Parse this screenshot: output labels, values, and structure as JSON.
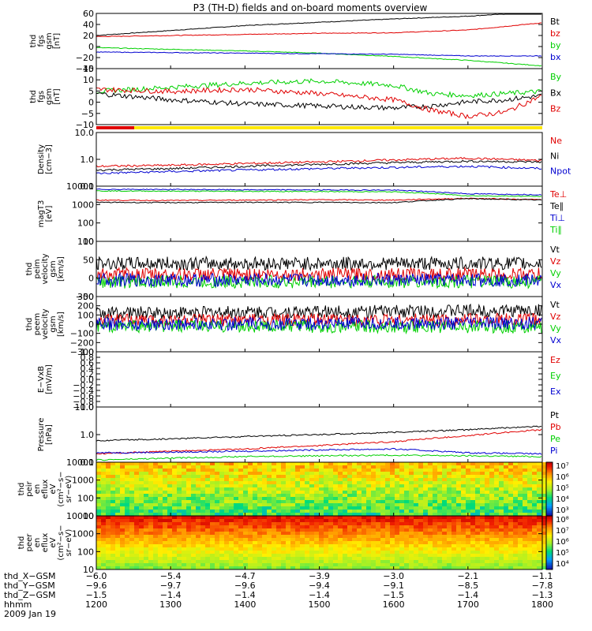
{
  "title": "P3 (TH-D) fields and on-board moments overview",
  "colors": {
    "black": "#000000",
    "red": "#e00000",
    "green": "#00d000",
    "blue": "#0000d0",
    "yellow": "#ffe800"
  },
  "chart_data": [
    {
      "type": "line",
      "id": "fgs_gsm",
      "ylabel": [
        "thd",
        "fgs",
        "gsm",
        "[nT]"
      ],
      "yscale": "linear",
      "ylim": [
        -40,
        60
      ],
      "yticks": [
        "60",
        "40",
        "20",
        "0",
        "−20",
        "−40"
      ],
      "series": [
        {
          "name": "Bt",
          "color": "black",
          "x": [
            1200,
            1300,
            1400,
            1500,
            1600,
            1700,
            1800
          ],
          "values": [
            20,
            29,
            38,
            44,
            50,
            55,
            63
          ]
        },
        {
          "name": "bz",
          "color": "red",
          "x": [
            1200,
            1300,
            1400,
            1500,
            1600,
            1700,
            1800
          ],
          "values": [
            18,
            20,
            22,
            24,
            25,
            30,
            43
          ]
        },
        {
          "name": "by",
          "color": "green",
          "x": [
            1200,
            1300,
            1400,
            1500,
            1600,
            1700,
            1800
          ],
          "values": [
            -2,
            -5,
            -8,
            -12,
            -18,
            -25,
            -35
          ]
        },
        {
          "name": "bx",
          "color": "blue",
          "x": [
            1200,
            1300,
            1400,
            1500,
            1600,
            1700,
            1800
          ],
          "values": [
            -10,
            -11,
            -12,
            -13,
            -14,
            -17,
            -17
          ]
        }
      ]
    },
    {
      "type": "line",
      "id": "fgs_gse_ns",
      "ylabel": [
        "thd",
        "fgs",
        "gsm",
        "[nT]"
      ],
      "yscale": "linear",
      "ylim": [
        -12,
        15
      ],
      "yticks": [
        "15",
        "10",
        "5",
        "0",
        "−5",
        "−10"
      ],
      "series": [
        {
          "name": "By",
          "color": "green",
          "x": [
            1200,
            1300,
            1400,
            1500,
            1600,
            1650,
            1700,
            1750,
            1800
          ],
          "values": [
            4,
            6,
            8,
            9,
            7,
            3,
            2,
            3,
            4
          ]
        },
        {
          "name": "Bx",
          "color": "black",
          "x": [
            1200,
            1300,
            1400,
            1500,
            1600,
            1650,
            1700,
            1750,
            1800
          ],
          "values": [
            3,
            0,
            -2,
            -3,
            -4,
            -3,
            -1,
            0,
            2
          ]
        },
        {
          "name": "Bz",
          "color": "red",
          "x": [
            1200,
            1300,
            1400,
            1500,
            1600,
            1650,
            1700,
            1750,
            1800
          ],
          "values": [
            5,
            4,
            5,
            3,
            0,
            -5,
            -8,
            -6,
            2
          ]
        }
      ]
    },
    {
      "type": "line",
      "id": "density",
      "ylabel": [
        "Density",
        "[cm−3]"
      ],
      "yscale": "log",
      "ylim": [
        0.1,
        10
      ],
      "yticks": [
        "10.0",
        "1.0",
        "0.1"
      ],
      "series": [
        {
          "name": "Ne",
          "color": "red",
          "x": [
            1200,
            1300,
            1400,
            1500,
            1600,
            1700,
            1800
          ],
          "values": [
            0.55,
            0.6,
            0.7,
            0.8,
            0.95,
            1.1,
            0.9
          ]
        },
        {
          "name": "Ni",
          "color": "black",
          "x": [
            1200,
            1300,
            1400,
            1500,
            1600,
            1700,
            1800
          ],
          "values": [
            0.4,
            0.45,
            0.55,
            0.65,
            0.75,
            0.85,
            0.8
          ]
        },
        {
          "name": "Npot",
          "color": "blue",
          "x": [
            1200,
            1300,
            1400,
            1500,
            1600,
            1700,
            1800
          ],
          "values": [
            0.3,
            0.35,
            0.4,
            0.45,
            0.5,
            0.55,
            0.45
          ]
        }
      ]
    },
    {
      "type": "line",
      "id": "temperature",
      "ylabel": [
        "magT3",
        "[eV]"
      ],
      "yscale": "log",
      "ylim": [
        10,
        12000
      ],
      "yticks": [
        "10000",
        "1000",
        "100",
        "10"
      ],
      "series": [
        {
          "name": "Te⊥",
          "color": "red",
          "x": [
            1200,
            1300,
            1400,
            1500,
            1600,
            1700,
            1800
          ],
          "values": [
            2000,
            1900,
            2000,
            2100,
            2000,
            2500,
            2100
          ]
        },
        {
          "name": "Te∥",
          "color": "black",
          "x": [
            1200,
            1300,
            1400,
            1500,
            1600,
            1700,
            1800
          ],
          "values": [
            1500,
            1450,
            1500,
            1500,
            1450,
            2400,
            2000
          ]
        },
        {
          "name": "Ti⊥",
          "color": "blue",
          "x": [
            1200,
            1300,
            1400,
            1500,
            1600,
            1700,
            1800
          ],
          "values": [
            8000,
            7800,
            7500,
            7400,
            7200,
            4500,
            4000
          ]
        },
        {
          "name": "Ti∥",
          "color": "green",
          "x": [
            1200,
            1300,
            1400,
            1500,
            1600,
            1700,
            1800
          ],
          "values": [
            6500,
            6300,
            6200,
            6000,
            5800,
            3500,
            3200
          ]
        }
      ]
    },
    {
      "type": "line",
      "id": "peim_velocity",
      "ylabel": [
        "thd",
        "peim",
        "velocity",
        "gsm",
        "[km/s]"
      ],
      "yscale": "linear",
      "ylim": [
        -50,
        100
      ],
      "yticks": [
        "100",
        "50",
        "0",
        "−50"
      ],
      "series": [
        {
          "name": "Vt",
          "color": "black",
          "x": [
            1200,
            1800
          ],
          "values": [
            40,
            40
          ]
        },
        {
          "name": "Vz",
          "color": "red",
          "x": [
            1200,
            1800
          ],
          "values": [
            10,
            10
          ]
        },
        {
          "name": "Vy",
          "color": "green",
          "x": [
            1200,
            1800
          ],
          "values": [
            -10,
            -10
          ]
        },
        {
          "name": "Vx",
          "color": "blue",
          "x": [
            1200,
            1800
          ],
          "values": [
            -5,
            -5
          ]
        }
      ]
    },
    {
      "type": "line",
      "id": "peem_velocity",
      "ylabel": [
        "thd",
        "peem",
        "velocity",
        "gsm",
        "[km/s]"
      ],
      "yscale": "linear",
      "ylim": [
        -300,
        300
      ],
      "yticks": [
        "300",
        "200",
        "100",
        "0",
        "−100",
        "−200",
        "−300"
      ],
      "series": [
        {
          "name": "Vt",
          "color": "black",
          "x": [
            1200,
            1800
          ],
          "values": [
            120,
            150
          ]
        },
        {
          "name": "Vz",
          "color": "red",
          "x": [
            1200,
            1800
          ],
          "values": [
            40,
            50
          ]
        },
        {
          "name": "Vy",
          "color": "green",
          "x": [
            1200,
            1800
          ],
          "values": [
            -20,
            -30
          ]
        },
        {
          "name": "Vx",
          "color": "blue",
          "x": [
            1200,
            1800
          ],
          "values": [
            0,
            10
          ]
        }
      ]
    },
    {
      "type": "line",
      "id": "efield",
      "ylabel": [
        "E−VxB",
        "[mV/m]"
      ],
      "yscale": "linear",
      "ylim": [
        -1,
        1
      ],
      "yticks": [
        "1.0",
        "0.8",
        "0.6",
        "0.4",
        "0.2",
        "0.0",
        "−0.2",
        "−0.4",
        "−0.6",
        "−0.8",
        "−1.0"
      ],
      "series": [
        {
          "name": "Ez",
          "color": "red"
        },
        {
          "name": "Ey",
          "color": "green"
        },
        {
          "name": "Ex",
          "color": "blue"
        }
      ]
    },
    {
      "type": "line",
      "id": "pressure",
      "ylabel": [
        "Pressure",
        "[nPa]"
      ],
      "yscale": "log",
      "ylim": [
        0.1,
        10
      ],
      "yticks": [
        "10.0",
        "1.0",
        "0.1"
      ],
      "series": [
        {
          "name": "Pt",
          "color": "black",
          "x": [
            1200,
            1300,
            1400,
            1500,
            1600,
            1700,
            1800
          ],
          "values": [
            0.6,
            0.7,
            0.85,
            1.0,
            1.2,
            1.5,
            2.0
          ]
        },
        {
          "name": "Pb",
          "color": "red",
          "x": [
            1200,
            1300,
            1400,
            1500,
            1600,
            1700,
            1800
          ],
          "values": [
            0.2,
            0.25,
            0.3,
            0.4,
            0.55,
            0.9,
            1.5
          ]
        },
        {
          "name": "Pe",
          "color": "green",
          "x": [
            1200,
            1300,
            1400,
            1500,
            1600,
            1700,
            1800
          ],
          "values": [
            0.12,
            0.14,
            0.16,
            0.17,
            0.18,
            0.17,
            0.16
          ]
        },
        {
          "name": "Pi",
          "color": "blue",
          "x": [
            1200,
            1300,
            1400,
            1500,
            1600,
            1700,
            1800
          ],
          "values": [
            0.22,
            0.23,
            0.25,
            0.28,
            0.3,
            0.22,
            0.2
          ]
        }
      ]
    },
    {
      "type": "heatmap",
      "id": "peir_spectrogram",
      "ylabel": [
        "thd",
        "peir",
        "en",
        "eflux",
        "eV",
        "(cm²−s−",
        "sr−eV)"
      ],
      "yscale": "log",
      "ylim": [
        7,
        20000
      ],
      "yticks": [
        "10000",
        "1000",
        "100",
        "10"
      ],
      "colorbar": [
        "10⁷",
        "10⁶",
        "10⁵",
        "10⁴",
        "10³"
      ]
    },
    {
      "type": "heatmap",
      "id": "peer_spectrogram",
      "ylabel": [
        "thd",
        "peer",
        "en",
        "eflux",
        "eV",
        "(cm²−s−",
        "sr−eV)"
      ],
      "yscale": "log",
      "ylim": [
        7,
        20000
      ],
      "yticks": [
        "10000",
        "1000",
        "100",
        "10"
      ],
      "colorbar": [
        "10⁸",
        "10⁷",
        "10⁶",
        "10⁵",
        "10⁴"
      ]
    }
  ],
  "xaxis": {
    "rows": [
      {
        "label": "thd_X−GSM",
        "values": [
          "−6.0",
          "−5.4",
          "−4.7",
          "−3.9",
          "−3.0",
          "−2.1",
          "−1.1"
        ]
      },
      {
        "label": "thd_Y−GSM",
        "values": [
          "−9.6",
          "−9.7",
          "−9.6",
          "−9.4",
          "−9.1",
          "−8.5",
          "−7.8"
        ]
      },
      {
        "label": "thd_Z−GSM",
        "values": [
          "−1.5",
          "−1.4",
          "−1.4",
          "−1.4",
          "−1.5",
          "−1.4",
          "−1.3"
        ]
      },
      {
        "label": "hhmm",
        "values": [
          "1200",
          "1300",
          "1400",
          "1500",
          "1600",
          "1700",
          "1800"
        ]
      }
    ],
    "date": "2009 Jan 19"
  }
}
